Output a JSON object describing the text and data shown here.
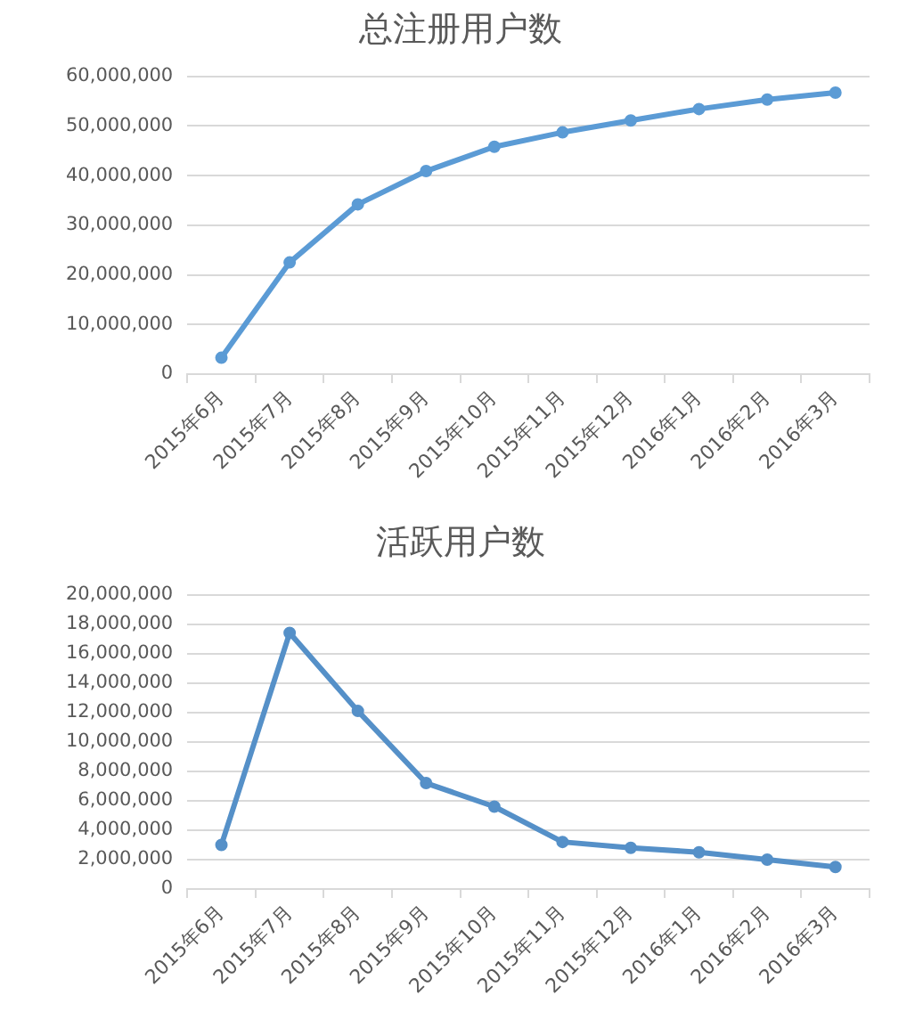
{
  "chart_data": [
    {
      "type": "line",
      "title": "总注册用户数",
      "categories": [
        "2015年6月",
        "2015年7月",
        "2015年8月",
        "2015年9月",
        "2015年10月",
        "2015年11月",
        "2015年12月",
        "2016年1月",
        "2016年2月",
        "2016年3月"
      ],
      "values": [
        3300000,
        22500000,
        34200000,
        40900000,
        45800000,
        48700000,
        51100000,
        53400000,
        55300000,
        56700000
      ],
      "color": "#5b9bd5",
      "ylim": [
        0,
        60000000
      ],
      "yticks": [
        {
          "value": 0,
          "label": "0"
        },
        {
          "value": 10000000,
          "label": "10,000,000"
        },
        {
          "value": 20000000,
          "label": "20,000,000"
        },
        {
          "value": 30000000,
          "label": "30,000,000"
        },
        {
          "value": 40000000,
          "label": "40,000,000"
        },
        {
          "value": 50000000,
          "label": "50,000,000"
        },
        {
          "value": 60000000,
          "label": "60,000,000"
        }
      ],
      "grid": "y",
      "marker": "circle"
    },
    {
      "type": "line",
      "title": "活跃用户数",
      "categories": [
        "2015年6月",
        "2015年7月",
        "2015年8月",
        "2015年9月",
        "2015年10月",
        "2015年11月",
        "2015年12月",
        "2016年1月",
        "2016年2月",
        "2016年3月"
      ],
      "values": [
        3000000,
        17400000,
        12100000,
        7200000,
        5600000,
        3200000,
        2800000,
        2500000,
        2000000,
        1500000
      ],
      "color": "#5590c8",
      "ylim": [
        0,
        20000000
      ],
      "yticks": [
        {
          "value": 0,
          "label": "0"
        },
        {
          "value": 2000000,
          "label": "2,000,000"
        },
        {
          "value": 4000000,
          "label": "4,000,000"
        },
        {
          "value": 6000000,
          "label": "6,000,000"
        },
        {
          "value": 8000000,
          "label": "8,000,000"
        },
        {
          "value": 10000000,
          "label": "10,000,000"
        },
        {
          "value": 12000000,
          "label": "12,000,000"
        },
        {
          "value": 14000000,
          "label": "14,000,000"
        },
        {
          "value": 16000000,
          "label": "16,000,000"
        },
        {
          "value": 18000000,
          "label": "18,000,000"
        },
        {
          "value": 20000000,
          "label": "20,000,000"
        }
      ],
      "grid": "y",
      "marker": "circle"
    }
  ]
}
